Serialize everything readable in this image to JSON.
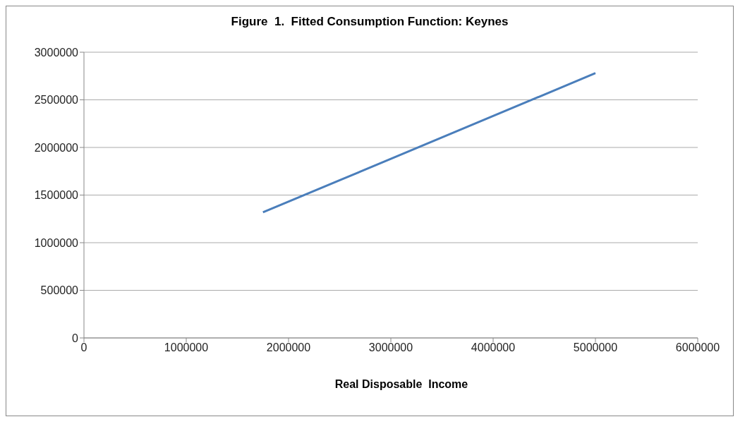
{
  "chart_data": {
    "type": "line",
    "title": "Figure  1.  Fitted Consumption Function: Keynes",
    "xlabel": "Real Disposable  Income",
    "x": [
      1750000,
      3000000,
      5000000
    ],
    "series": [
      {
        "color": "#4a7ebb",
        "values": [
          1320000,
          1880000,
          2780000
        ]
      }
    ],
    "xlim": [
      0,
      6000000
    ],
    "xticks": [
      0,
      1000000,
      2000000,
      3000000,
      4000000,
      5000000,
      6000000
    ],
    "ylim": [
      0,
      3000000
    ],
    "yticks": [
      0,
      500000,
      1000000,
      1500000,
      2000000,
      2500000,
      3000000
    ],
    "grid": "y",
    "legend": false,
    "marker": "none",
    "line_style": "solid"
  }
}
